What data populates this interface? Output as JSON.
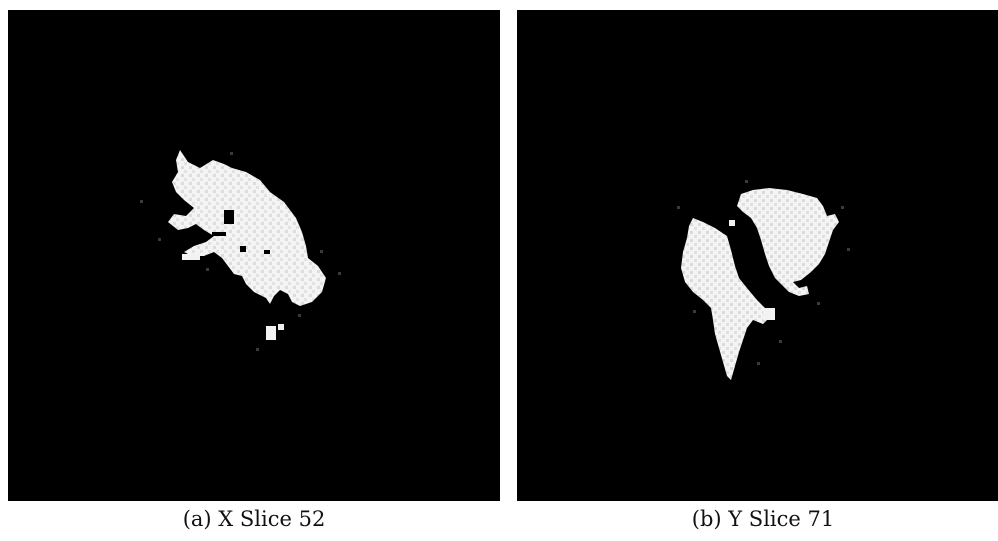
{
  "figures": [
    {
      "caption": "(a) X Slice 52",
      "axis": "X",
      "slice": 52
    },
    {
      "caption": "(b) Y Slice 71",
      "axis": "Y",
      "slice": 71
    }
  ],
  "colors": {
    "background": "#000000",
    "foreground": "#f2f2f2",
    "page": "#ffffff"
  }
}
